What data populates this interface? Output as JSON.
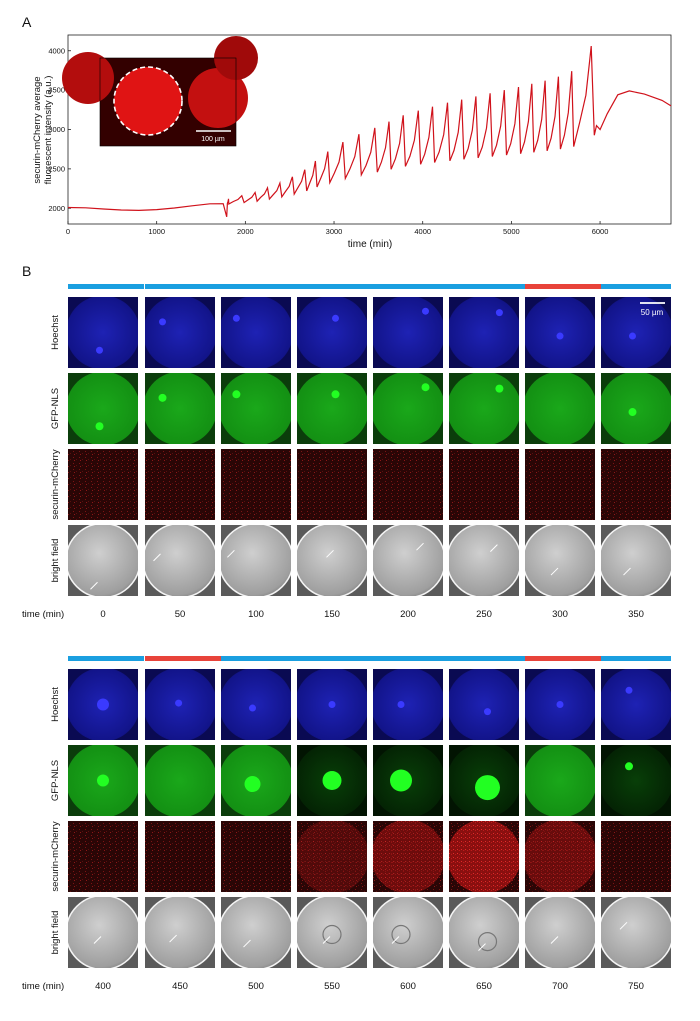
{
  "panel_a": {
    "letter": "A",
    "ylabel_line1": "securin-mCherry average",
    "ylabel_line2": "fluorescent intensity (a.u.)",
    "xlabel": "time (min)",
    "inset_scale": "100 µm"
  },
  "panel_b": {
    "letter": "B",
    "scale_bar": "50 µm",
    "row_labels": [
      "Hoechst",
      "GFP-NLS",
      "securin-mCherry",
      "bright field"
    ],
    "time_header": "time (min)",
    "times_top": [
      "0",
      "50",
      "100",
      "150",
      "200",
      "250",
      "300",
      "350"
    ],
    "times_bottom": [
      "400",
      "450",
      "500",
      "550",
      "600",
      "650",
      "700",
      "750"
    ],
    "phase_bars_top": [
      "blue",
      "blue",
      "blue",
      "blue",
      "blue",
      "blue",
      "red",
      "blue"
    ],
    "phase_bars_bottom": [
      "blue",
      "red",
      "blue",
      "blue",
      "blue",
      "blue",
      "red",
      "blue"
    ],
    "colors": {
      "blue": "#1a9fe0",
      "red": "#e8433a",
      "trace": "#d0121b"
    }
  },
  "chart_data": {
    "type": "line",
    "title": "",
    "xlabel": "time (min)",
    "ylabel": "securin-mCherry average fluorescent intensity (a.u.)",
    "xlim": [
      0,
      6800
    ],
    "ylim": [
      1800,
      4200
    ],
    "xticks": [
      0,
      1000,
      2000,
      3000,
      4000,
      5000,
      6000
    ],
    "yticks": [
      2000,
      2500,
      3000,
      3500,
      4000
    ],
    "grid": false,
    "series": [
      {
        "peaks": [
          [
            1810,
            2120
          ],
          [
            1960,
            2160
          ],
          [
            2110,
            2200
          ],
          [
            2250,
            2260
          ],
          [
            2390,
            2320
          ],
          [
            2530,
            2400
          ],
          [
            2670,
            2490
          ],
          [
            2790,
            2600
          ],
          [
            2930,
            2720
          ],
          [
            3100,
            2840
          ],
          [
            3280,
            2940
          ],
          [
            3460,
            3020
          ],
          [
            3620,
            3100
          ],
          [
            3780,
            3180
          ],
          [
            3950,
            3240
          ],
          [
            4110,
            3290
          ],
          [
            4280,
            3340
          ],
          [
            4440,
            3380
          ],
          [
            4600,
            3420
          ],
          [
            4760,
            3460
          ],
          [
            4920,
            3500
          ],
          [
            5080,
            3540
          ],
          [
            5230,
            3580
          ],
          [
            5380,
            3620
          ],
          [
            5530,
            3670
          ],
          [
            5680,
            3740
          ],
          [
            5900,
            4060
          ]
        ],
        "baseline": [
          [
            0,
            2010
          ],
          [
            200,
            2000
          ],
          [
            400,
            1990
          ],
          [
            600,
            1975
          ],
          [
            800,
            1970
          ],
          [
            1000,
            1980
          ],
          [
            1200,
            2000
          ],
          [
            1400,
            2030
          ],
          [
            1600,
            2060
          ],
          [
            1750,
            2060
          ],
          [
            1790,
            1890
          ]
        ],
        "tail": [
          [
            5960,
            3050
          ],
          [
            6000,
            3000
          ],
          [
            6080,
            3200
          ],
          [
            6200,
            3440
          ],
          [
            6330,
            3490
          ],
          [
            6500,
            3450
          ],
          [
            6700,
            3370
          ],
          [
            6800,
            3300
          ]
        ]
      }
    ]
  }
}
